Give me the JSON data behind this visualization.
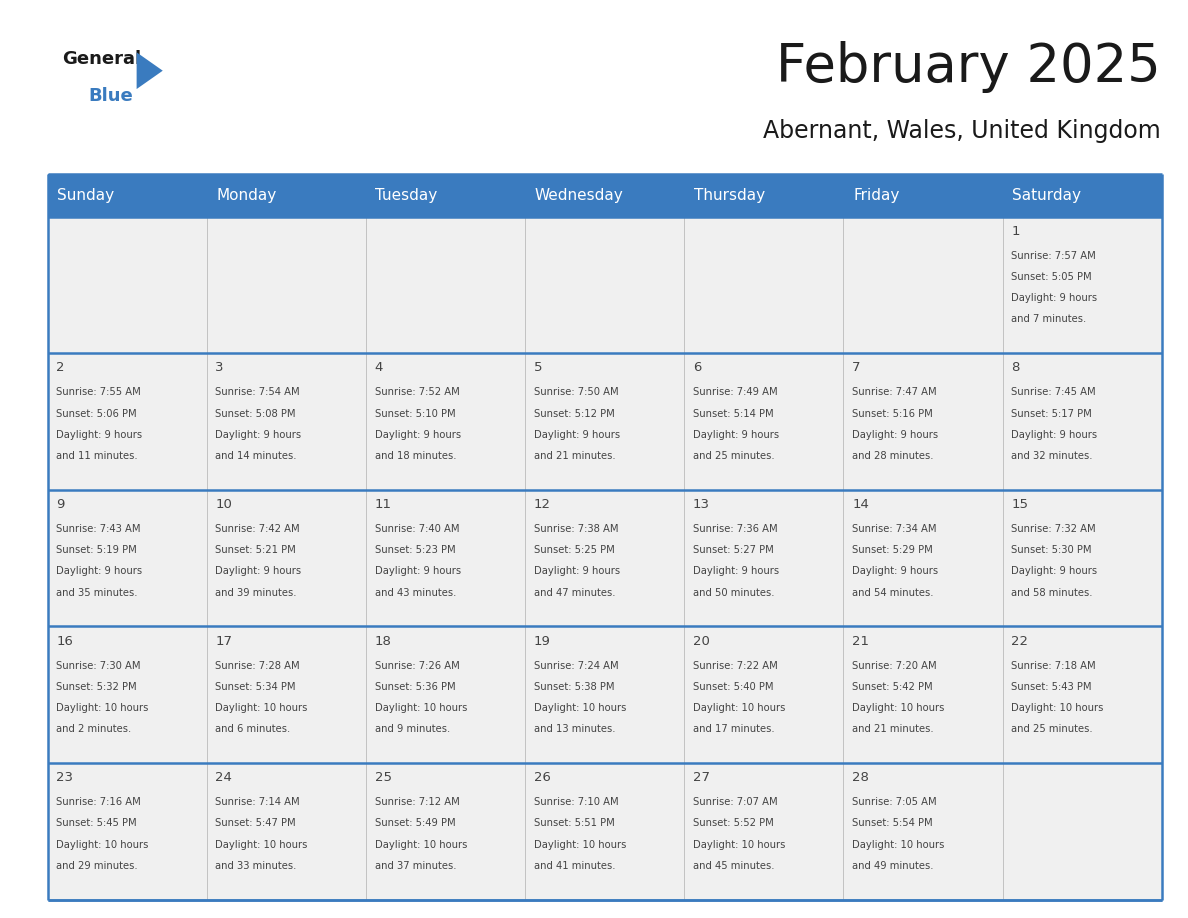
{
  "title": "February 2025",
  "subtitle": "Abernant, Wales, United Kingdom",
  "header_color": "#3a7bbf",
  "header_text_color": "#ffffff",
  "cell_bg_color": "#f0f0f0",
  "grid_line_color": "#3a7bbf",
  "day_headers": [
    "Sunday",
    "Monday",
    "Tuesday",
    "Wednesday",
    "Thursday",
    "Friday",
    "Saturday"
  ],
  "days_data": [
    {
      "day": 1,
      "col": 6,
      "row": 0,
      "sunrise": "7:57 AM",
      "sunset": "5:05 PM",
      "daylight": "9 hours and 7 minutes."
    },
    {
      "day": 2,
      "col": 0,
      "row": 1,
      "sunrise": "7:55 AM",
      "sunset": "5:06 PM",
      "daylight": "9 hours and 11 minutes."
    },
    {
      "day": 3,
      "col": 1,
      "row": 1,
      "sunrise": "7:54 AM",
      "sunset": "5:08 PM",
      "daylight": "9 hours and 14 minutes."
    },
    {
      "day": 4,
      "col": 2,
      "row": 1,
      "sunrise": "7:52 AM",
      "sunset": "5:10 PM",
      "daylight": "9 hours and 18 minutes."
    },
    {
      "day": 5,
      "col": 3,
      "row": 1,
      "sunrise": "7:50 AM",
      "sunset": "5:12 PM",
      "daylight": "9 hours and 21 minutes."
    },
    {
      "day": 6,
      "col": 4,
      "row": 1,
      "sunrise": "7:49 AM",
      "sunset": "5:14 PM",
      "daylight": "9 hours and 25 minutes."
    },
    {
      "day": 7,
      "col": 5,
      "row": 1,
      "sunrise": "7:47 AM",
      "sunset": "5:16 PM",
      "daylight": "9 hours and 28 minutes."
    },
    {
      "day": 8,
      "col": 6,
      "row": 1,
      "sunrise": "7:45 AM",
      "sunset": "5:17 PM",
      "daylight": "9 hours and 32 minutes."
    },
    {
      "day": 9,
      "col": 0,
      "row": 2,
      "sunrise": "7:43 AM",
      "sunset": "5:19 PM",
      "daylight": "9 hours and 35 minutes."
    },
    {
      "day": 10,
      "col": 1,
      "row": 2,
      "sunrise": "7:42 AM",
      "sunset": "5:21 PM",
      "daylight": "9 hours and 39 minutes."
    },
    {
      "day": 11,
      "col": 2,
      "row": 2,
      "sunrise": "7:40 AM",
      "sunset": "5:23 PM",
      "daylight": "9 hours and 43 minutes."
    },
    {
      "day": 12,
      "col": 3,
      "row": 2,
      "sunrise": "7:38 AM",
      "sunset": "5:25 PM",
      "daylight": "9 hours and 47 minutes."
    },
    {
      "day": 13,
      "col": 4,
      "row": 2,
      "sunrise": "7:36 AM",
      "sunset": "5:27 PM",
      "daylight": "9 hours and 50 minutes."
    },
    {
      "day": 14,
      "col": 5,
      "row": 2,
      "sunrise": "7:34 AM",
      "sunset": "5:29 PM",
      "daylight": "9 hours and 54 minutes."
    },
    {
      "day": 15,
      "col": 6,
      "row": 2,
      "sunrise": "7:32 AM",
      "sunset": "5:30 PM",
      "daylight": "9 hours and 58 minutes."
    },
    {
      "day": 16,
      "col": 0,
      "row": 3,
      "sunrise": "7:30 AM",
      "sunset": "5:32 PM",
      "daylight": "10 hours and 2 minutes."
    },
    {
      "day": 17,
      "col": 1,
      "row": 3,
      "sunrise": "7:28 AM",
      "sunset": "5:34 PM",
      "daylight": "10 hours and 6 minutes."
    },
    {
      "day": 18,
      "col": 2,
      "row": 3,
      "sunrise": "7:26 AM",
      "sunset": "5:36 PM",
      "daylight": "10 hours and 9 minutes."
    },
    {
      "day": 19,
      "col": 3,
      "row": 3,
      "sunrise": "7:24 AM",
      "sunset": "5:38 PM",
      "daylight": "10 hours and 13 minutes."
    },
    {
      "day": 20,
      "col": 4,
      "row": 3,
      "sunrise": "7:22 AM",
      "sunset": "5:40 PM",
      "daylight": "10 hours and 17 minutes."
    },
    {
      "day": 21,
      "col": 5,
      "row": 3,
      "sunrise": "7:20 AM",
      "sunset": "5:42 PM",
      "daylight": "10 hours and 21 minutes."
    },
    {
      "day": 22,
      "col": 6,
      "row": 3,
      "sunrise": "7:18 AM",
      "sunset": "5:43 PM",
      "daylight": "10 hours and 25 minutes."
    },
    {
      "day": 23,
      "col": 0,
      "row": 4,
      "sunrise": "7:16 AM",
      "sunset": "5:45 PM",
      "daylight": "10 hours and 29 minutes."
    },
    {
      "day": 24,
      "col": 1,
      "row": 4,
      "sunrise": "7:14 AM",
      "sunset": "5:47 PM",
      "daylight": "10 hours and 33 minutes."
    },
    {
      "day": 25,
      "col": 2,
      "row": 4,
      "sunrise": "7:12 AM",
      "sunset": "5:49 PM",
      "daylight": "10 hours and 37 minutes."
    },
    {
      "day": 26,
      "col": 3,
      "row": 4,
      "sunrise": "7:10 AM",
      "sunset": "5:51 PM",
      "daylight": "10 hours and 41 minutes."
    },
    {
      "day": 27,
      "col": 4,
      "row": 4,
      "sunrise": "7:07 AM",
      "sunset": "5:52 PM",
      "daylight": "10 hours and 45 minutes."
    },
    {
      "day": 28,
      "col": 5,
      "row": 4,
      "sunrise": "7:05 AM",
      "sunset": "5:54 PM",
      "daylight": "10 hours and 49 minutes."
    }
  ],
  "num_rows": 5,
  "num_cols": 7,
  "logo_color_black": "#1a1a1a",
  "logo_color_blue": "#3a7bbf",
  "title_fontsize": 38,
  "subtitle_fontsize": 17,
  "header_fontsize": 11,
  "day_num_fontsize": 9.5,
  "cell_text_fontsize": 7.2
}
